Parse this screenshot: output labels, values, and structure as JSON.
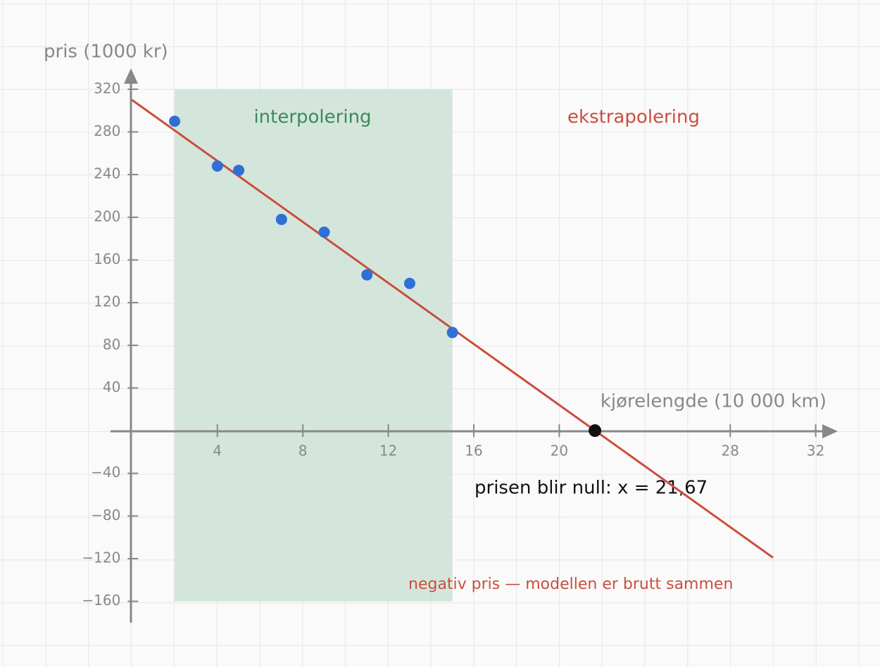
{
  "chart_data": {
    "type": "scatter",
    "x_label": "kjørelengde (10 000 km)",
    "y_label": "pris (1000 kr)",
    "xlim": [
      -1,
      33
    ],
    "ylim": [
      -180,
      340
    ],
    "xticks": [
      4,
      8,
      12,
      16,
      20,
      28,
      32
    ],
    "yticks": [
      320,
      280,
      240,
      200,
      160,
      120,
      80,
      40,
      {
        "value": -40,
        "label": "−40"
      },
      {
        "value": -80,
        "label": "−80"
      },
      {
        "value": -120,
        "label": "−120"
      },
      {
        "value": -160,
        "label": "−160"
      }
    ],
    "grid": true,
    "x": [
      2,
      4,
      5,
      7,
      9,
      11,
      13,
      15
    ],
    "values": [
      290,
      248,
      244,
      198,
      186,
      146,
      138,
      92
    ],
    "color": "#2f6fd6",
    "fit": {
      "x": [
        0,
        30
      ],
      "values": [
        310,
        -119
      ],
      "color": "#c94f3c"
    },
    "region": {
      "x": [
        2,
        15
      ],
      "y": [
        -160,
        320
      ],
      "color": "#cfe3d8",
      "label": "interpolering"
    },
    "extrapolation_label": "ekstrapolering",
    "zero": {
      "x": 21.67,
      "y": 0,
      "color": "#111111",
      "label": "prisen blir null: x = 21,67"
    },
    "negative_note": "negativ pris — modellen er brutt sammen"
  }
}
